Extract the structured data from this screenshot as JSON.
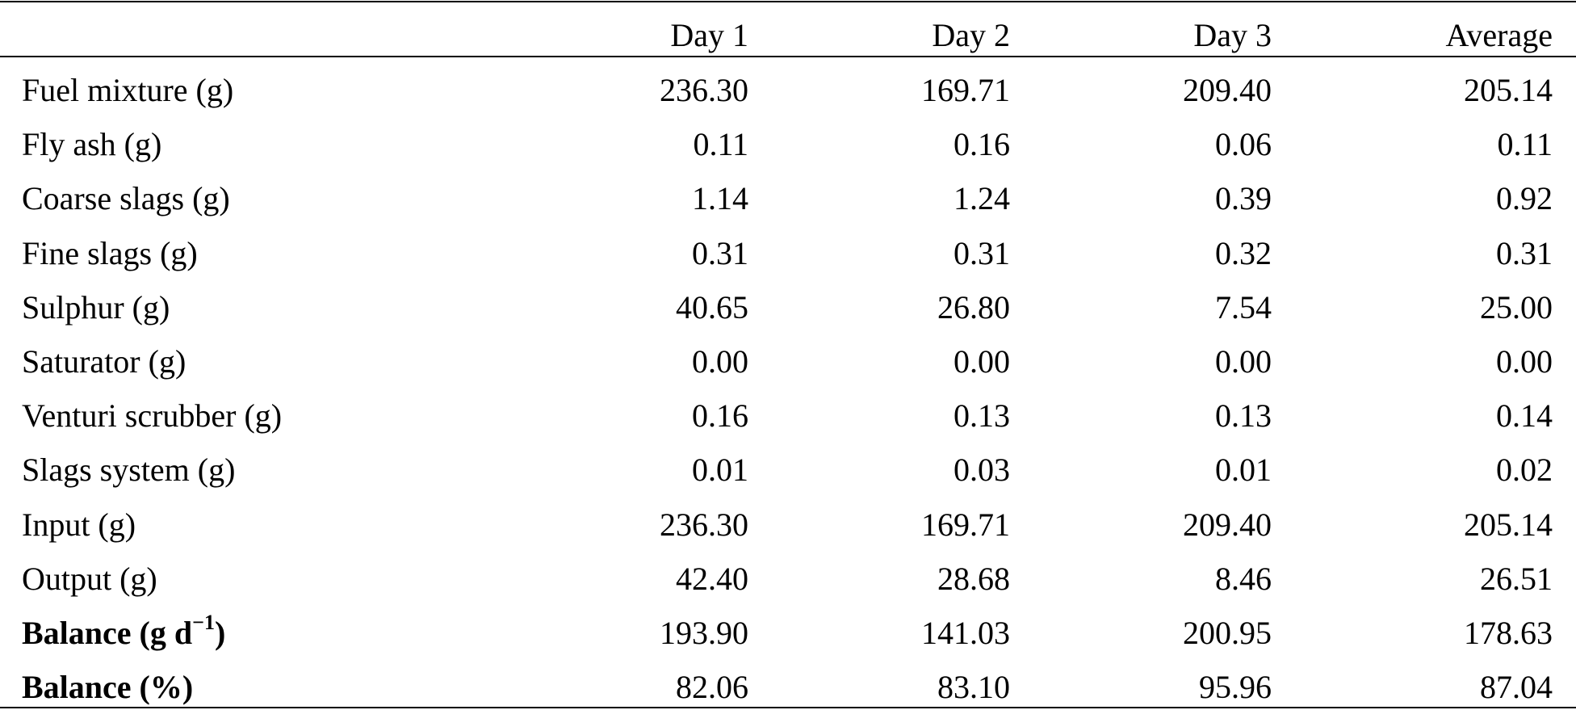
{
  "table": {
    "header": [
      "Day 1",
      "Day 2",
      "Day 3",
      "Average"
    ],
    "rows": [
      {
        "label": "Fuel mixture (g)",
        "cells": [
          "236.30",
          "169.71",
          "209.40",
          "205.14"
        ]
      },
      {
        "label": "Fly ash (g)",
        "cells": [
          "0.11",
          "0.16",
          "0.06",
          "0.11"
        ]
      },
      {
        "label": "Coarse slags (g)",
        "cells": [
          "1.14",
          "1.24",
          "0.39",
          "0.92"
        ]
      },
      {
        "label": "Fine slags (g)",
        "cells": [
          "0.31",
          "0.31",
          "0.32",
          "0.31"
        ]
      },
      {
        "label": "Sulphur (g)",
        "cells": [
          "40.65",
          "26.80",
          "7.54",
          "25.00"
        ]
      },
      {
        "label": "Saturator (g)",
        "cells": [
          "0.00",
          "0.00",
          "0.00",
          "0.00"
        ]
      },
      {
        "label": "Venturi scrubber (g)",
        "cells": [
          "0.16",
          "0.13",
          "0.13",
          "0.14"
        ]
      },
      {
        "label": "Slags system (g)",
        "cells": [
          "0.01",
          "0.03",
          "0.01",
          "0.02"
        ]
      },
      {
        "label": "Input (g)",
        "cells": [
          "236.30",
          "169.71",
          "209.40",
          "205.14"
        ]
      },
      {
        "label": "Output (g)",
        "cells": [
          "42.40",
          "28.68",
          "8.46",
          "26.51"
        ]
      },
      {
        "label": "Balance (g d",
        "sup": "−1",
        "suffix": ")",
        "bold": true,
        "cells": [
          "193.90",
          "141.03",
          "200.95",
          "178.63"
        ]
      },
      {
        "label": "Balance (%)",
        "bold": true,
        "cells": [
          "82.06",
          "83.10",
          "95.96",
          "87.04"
        ]
      }
    ]
  }
}
